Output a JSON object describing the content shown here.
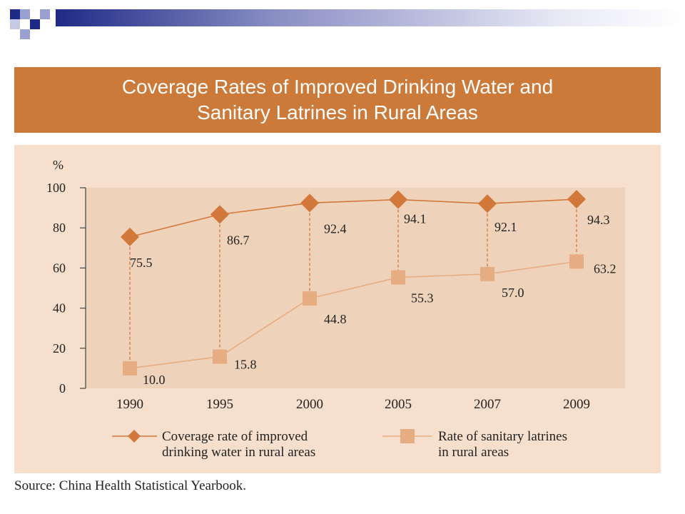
{
  "slide": {
    "title": "Coverage Rates of Improved Drinking Water and\nSanitary Latrines in Rural Areas",
    "source": "Source: China Health Statistical Yearbook.",
    "colors": {
      "title_band": "#cc7a3a",
      "panel": "#f6dfcc",
      "plot_area": "#efd2ba",
      "water_series": "#d2783b",
      "latrine_series": "#e7ad82"
    }
  },
  "chart_data": {
    "type": "line",
    "title": "Coverage Rates of Improved Drinking Water and Sanitary Latrines in Rural Areas",
    "y_unit": "%",
    "categories": [
      "1990",
      "1995",
      "2000",
      "2005",
      "2007",
      "2009"
    ],
    "ylim": [
      0,
      100
    ],
    "yticks": [
      "0",
      "20",
      "40",
      "60",
      "80",
      "100"
    ],
    "series": [
      {
        "name": "Coverage rate of improved drinking water in rural areas",
        "legend_lines": [
          "Coverage rate of improved",
          "drinking water in rural areas"
        ],
        "marker": "diamond",
        "values": [
          75.5,
          86.7,
          92.4,
          94.1,
          92.1,
          94.3
        ],
        "labels": [
          "75.5",
          "86.7",
          "92.4",
          "94.1",
          "92.1",
          "94.3"
        ]
      },
      {
        "name": "Rate of sanitary latrines in rural areas",
        "legend_lines": [
          "Rate of sanitary latrines",
          "in rural areas"
        ],
        "marker": "square",
        "values": [
          10.0,
          15.8,
          44.8,
          55.3,
          57.0,
          63.2
        ],
        "labels": [
          "10.0",
          "15.8",
          "44.8",
          "55.3",
          "57.0",
          "63.2"
        ]
      }
    ],
    "legend": "bottom",
    "grid": false
  }
}
